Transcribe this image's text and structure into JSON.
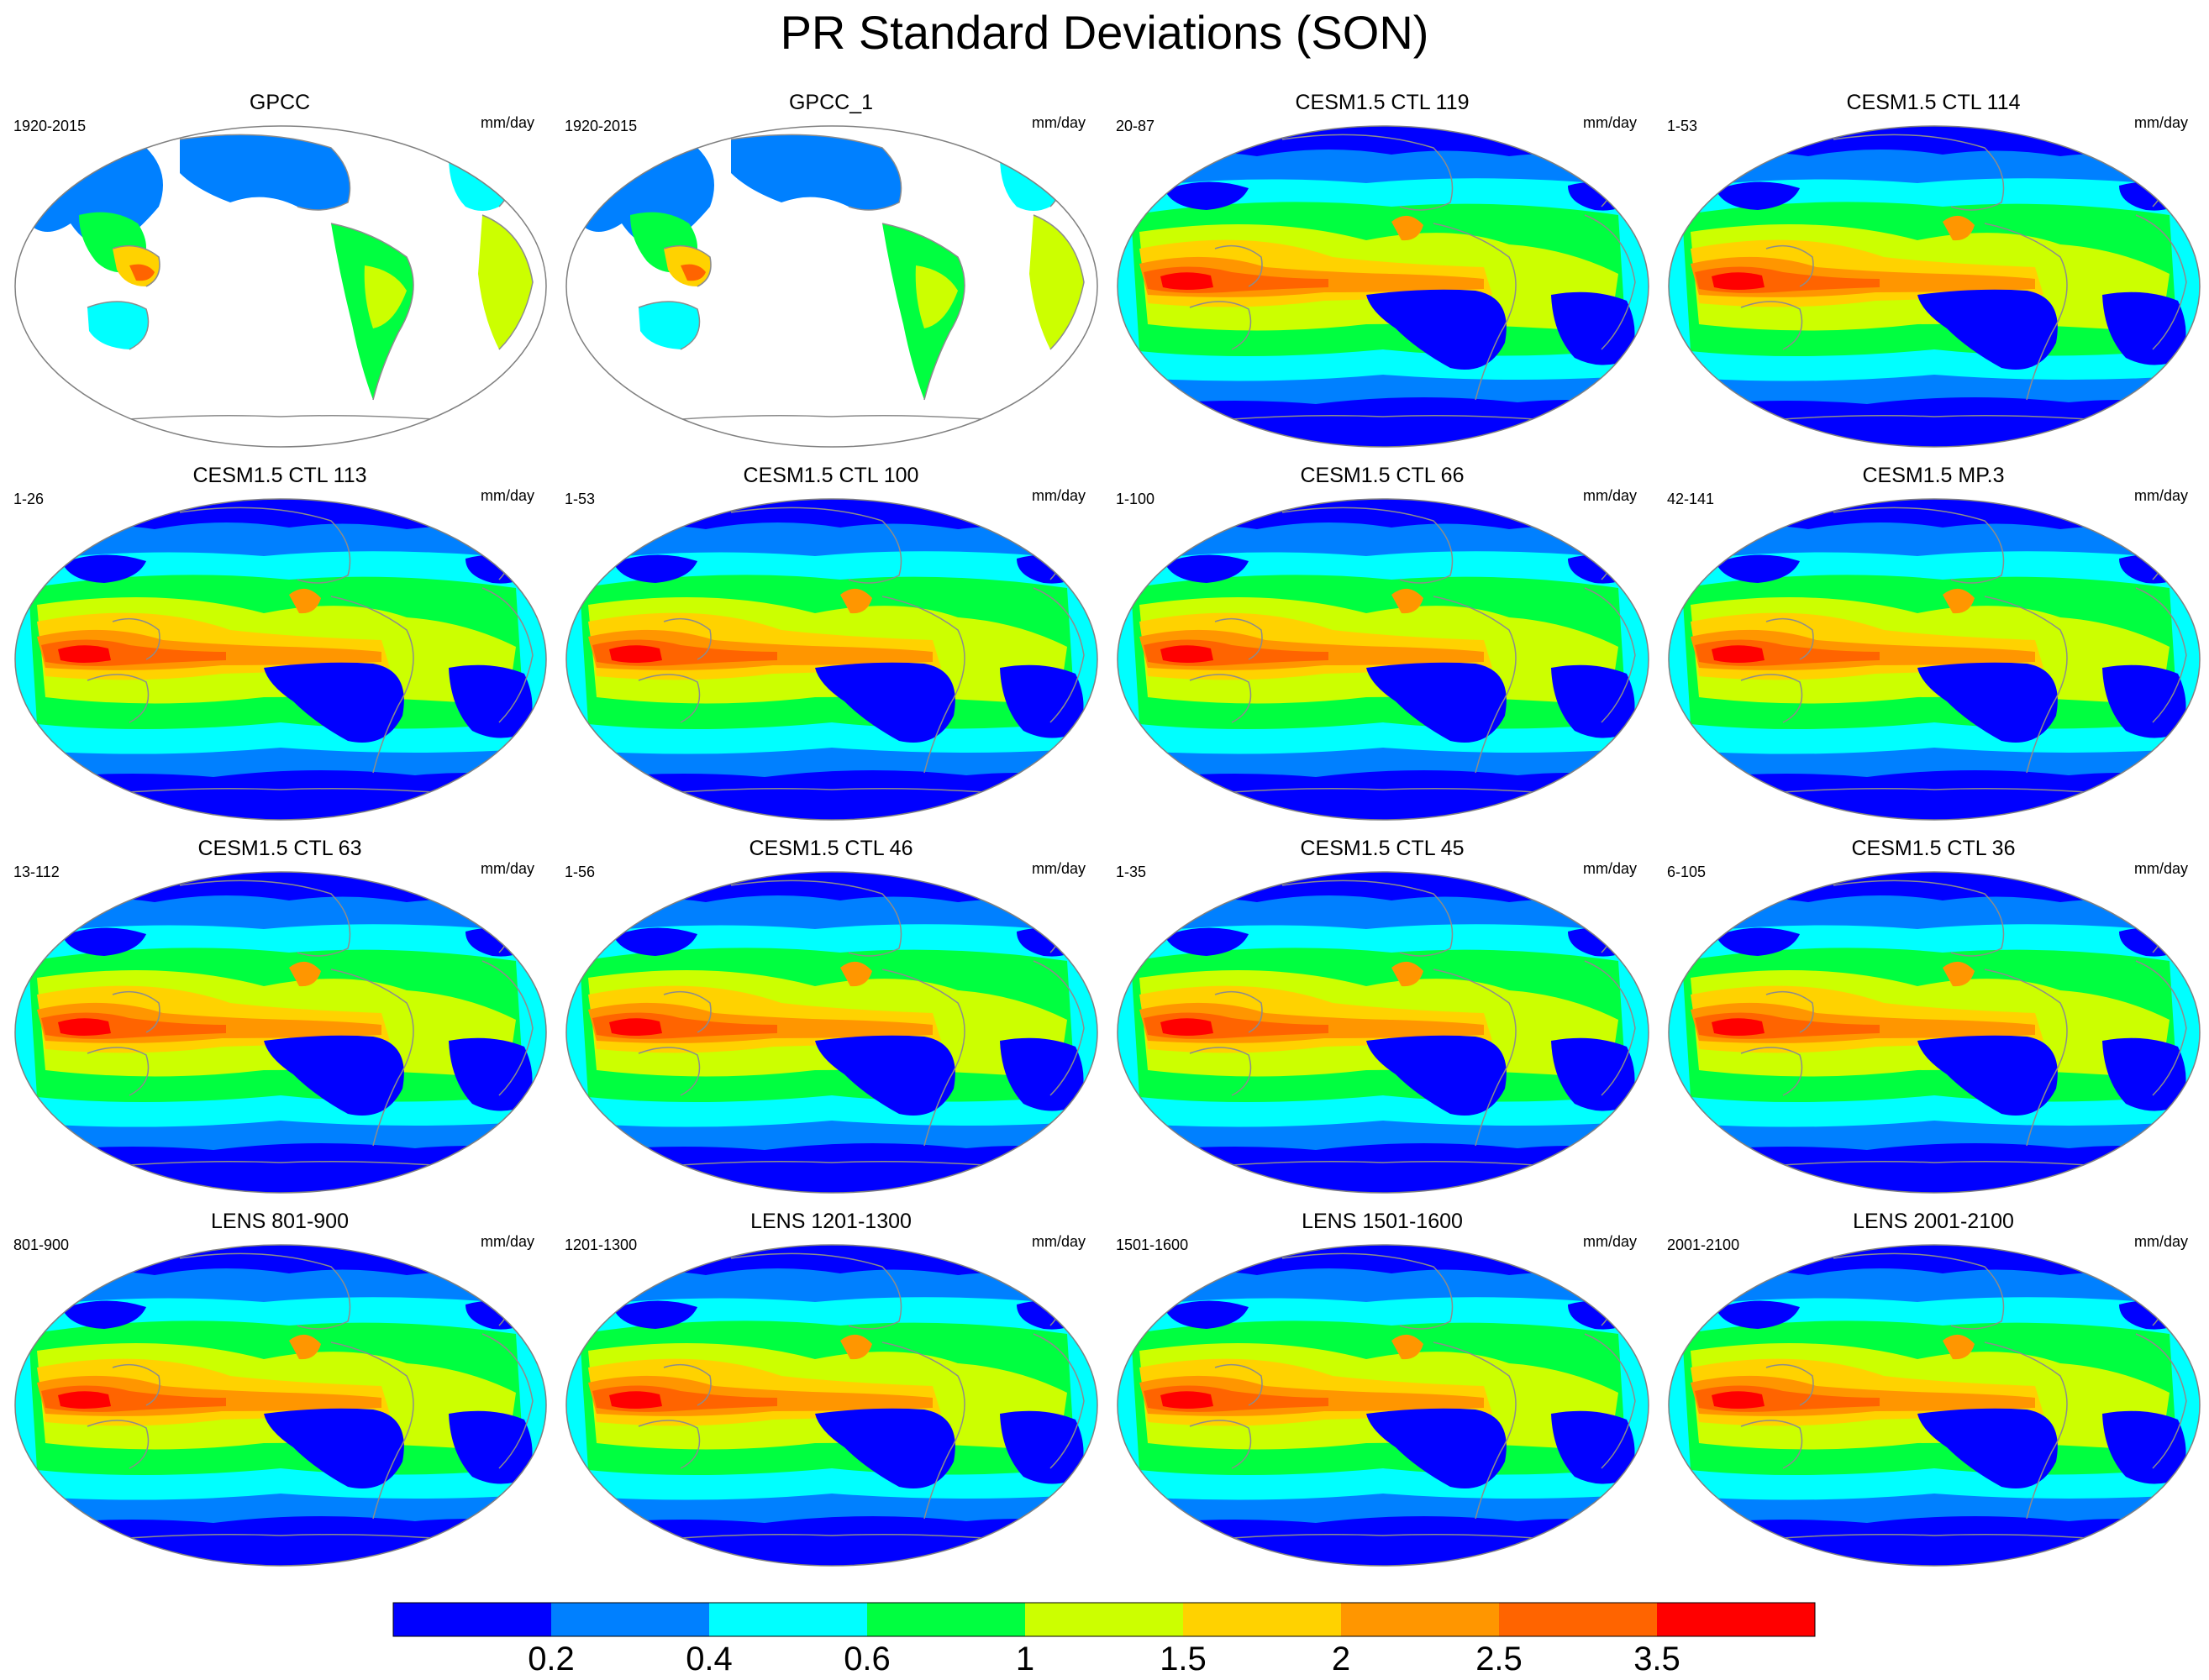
{
  "title": "PR Standard Deviations (SON)",
  "colors": {
    "levels": [
      "#0000ff",
      "#0080ff",
      "#00ffff",
      "#00ff40",
      "#ccff00",
      "#ffd200",
      "#ff9600",
      "#ff6400",
      "#ff0000"
    ],
    "missing": "#ffffff",
    "coastline": "#8c8c8c",
    "outline": "#808080"
  },
  "colorbar": {
    "labels": [
      "0.2",
      "0.4",
      "0.6",
      "1",
      "1.5",
      "2",
      "2.5",
      "3.5"
    ]
  },
  "panels": [
    {
      "title": "GPCC",
      "left": "1920-2015",
      "right": "mm/day",
      "kind": "obs"
    },
    {
      "title": "GPCC_1",
      "left": "1920-2015",
      "right": "mm/day",
      "kind": "obs"
    },
    {
      "title": "CESM1.5 CTL 119",
      "left": "20-87",
      "right": "mm/day",
      "kind": "model"
    },
    {
      "title": "CESM1.5 CTL 114",
      "left": "1-53",
      "right": "mm/day",
      "kind": "model"
    },
    {
      "title": "CESM1.5 CTL 113",
      "left": "1-26",
      "right": "mm/day",
      "kind": "model"
    },
    {
      "title": "CESM1.5 CTL 100",
      "left": "1-53",
      "right": "mm/day",
      "kind": "model"
    },
    {
      "title": "CESM1.5 CTL 66",
      "left": "1-100",
      "right": "mm/day",
      "kind": "model"
    },
    {
      "title": "CESM1.5 MP.3",
      "left": "42-141",
      "right": "mm/day",
      "kind": "model"
    },
    {
      "title": "CESM1.5 CTL 63",
      "left": "13-112",
      "right": "mm/day",
      "kind": "model"
    },
    {
      "title": "CESM1.5 CTL 46",
      "left": "1-56",
      "right": "mm/day",
      "kind": "model"
    },
    {
      "title": "CESM1.5 CTL 45",
      "left": "1-35",
      "right": "mm/day",
      "kind": "model"
    },
    {
      "title": "CESM1.5 CTL 36",
      "left": "6-105",
      "right": "mm/day",
      "kind": "model"
    },
    {
      "title": "LENS 801-900",
      "left": "801-900",
      "right": "mm/day",
      "kind": "model"
    },
    {
      "title": "LENS 1201-1300",
      "left": "1201-1300",
      "right": "mm/day",
      "kind": "model"
    },
    {
      "title": "LENS 1501-1600",
      "left": "1501-1600",
      "right": "mm/day",
      "kind": "model"
    },
    {
      "title": "LENS 2001-2100",
      "left": "2001-2100",
      "right": "mm/day",
      "kind": "model"
    }
  ]
}
